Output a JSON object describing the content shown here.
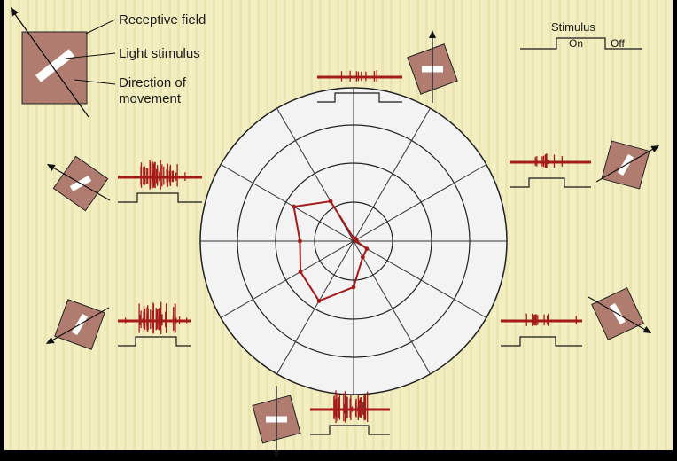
{
  "legend": {
    "receptive_field": "Receptive field",
    "light_stimulus": "Light stimulus",
    "direction": "Direction of",
    "direction2": "movement"
  },
  "stimulus": {
    "title": "Stimulus",
    "on": "On",
    "off": "Off"
  },
  "colors": {
    "paper": "#f1edbf",
    "card": "#b07c70",
    "trace": "#a51a1a",
    "ink": "#1a1a1a",
    "circle_fill": "#f3f3f3"
  },
  "polar_response": {
    "directions_deg": [
      0,
      30,
      60,
      90,
      120,
      150,
      180,
      210,
      240,
      270,
      300,
      330
    ],
    "values": [
      0.02,
      0.02,
      0.02,
      0.02,
      0.3,
      0.45,
      0.35,
      0.4,
      0.45,
      0.3,
      0.12,
      0.1
    ]
  }
}
